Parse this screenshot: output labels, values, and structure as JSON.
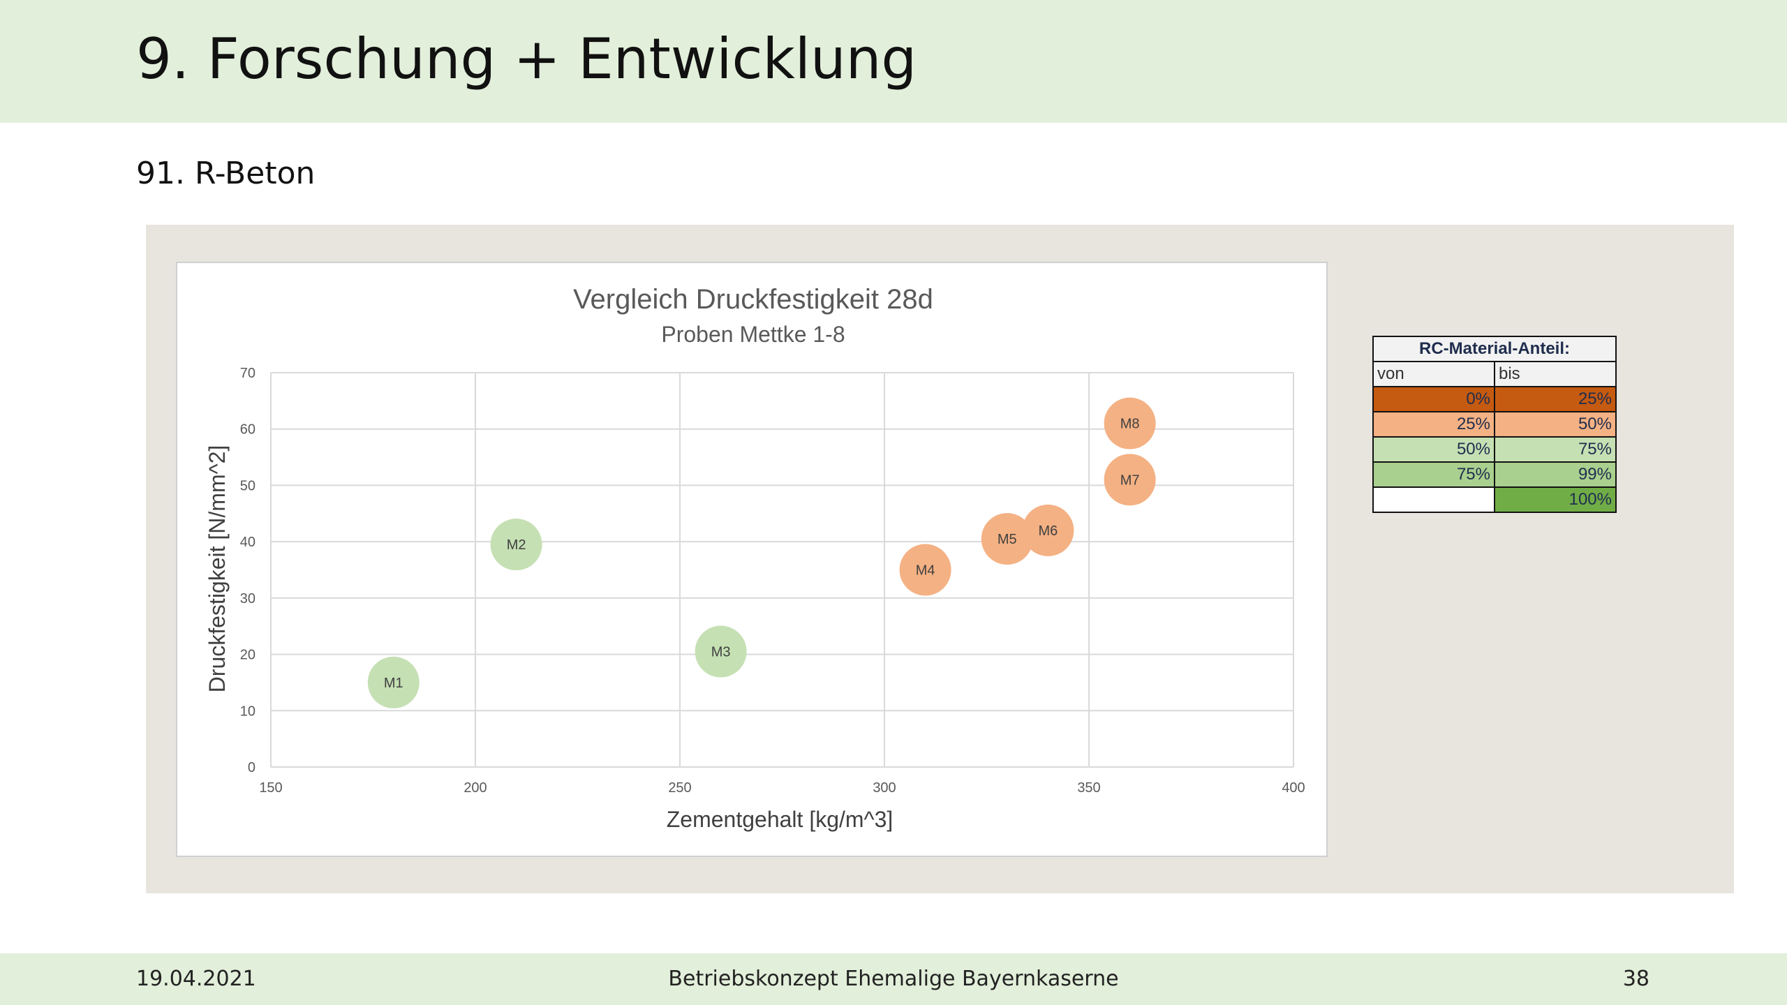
{
  "slide": {
    "title": "9. Forschung + Entwicklung",
    "section": "91. R-Beton"
  },
  "chart_data": {
    "type": "scatter",
    "title": "Vergleich Druckfestigkeit 28d",
    "subtitle": "Proben Mettke 1-8",
    "xlabel": "Zementgehalt [kg/m^3]",
    "ylabel": "Druckfestigkeit [N/mm^2]",
    "xlim": [
      150,
      400
    ],
    "ylim": [
      0,
      70
    ],
    "xticks": [
      150,
      200,
      250,
      300,
      350,
      400
    ],
    "yticks": [
      0,
      10,
      20,
      30,
      40,
      50,
      60,
      70
    ],
    "grid": true,
    "points": [
      {
        "label": "M1",
        "x": 180,
        "y": 15,
        "color": "#c5e0b3"
      },
      {
        "label": "M2",
        "x": 210,
        "y": 39.5,
        "color": "#c5e0b3"
      },
      {
        "label": "M3",
        "x": 260,
        "y": 20.5,
        "color": "#c5e0b3"
      },
      {
        "label": "M4",
        "x": 310,
        "y": 35,
        "color": "#f4b183"
      },
      {
        "label": "M5",
        "x": 330,
        "y": 40.5,
        "color": "#f4b183"
      },
      {
        "label": "M6",
        "x": 340,
        "y": 42,
        "color": "#f4b183"
      },
      {
        "label": "M7",
        "x": 360,
        "y": 51,
        "color": "#f4b183"
      },
      {
        "label": "M8",
        "x": 360,
        "y": 61,
        "color": "#f4b183"
      }
    ]
  },
  "legend_table": {
    "header": "RC-Material-Anteil:",
    "col_from": "von",
    "col_to": "bis",
    "rows": [
      {
        "from": "0%",
        "to": "25%",
        "color_from": "#c55a11",
        "color_to": "#c55a11"
      },
      {
        "from": "25%",
        "to": "50%",
        "color_from": "#f4b183",
        "color_to": "#f4b183"
      },
      {
        "from": "50%",
        "to": "75%",
        "color_from": "#c5e0b3",
        "color_to": "#c5e0b3"
      },
      {
        "from": "75%",
        "to": "99%",
        "color_from": "#a9d08e",
        "color_to": "#a9d08e"
      },
      {
        "from": "",
        "to": "100%",
        "color_from": "#ffffff",
        "color_to": "#70ad47"
      }
    ]
  },
  "footer": {
    "date": "19.04.2021",
    "center": "Betriebskonzept Ehemalige Bayernkaserne",
    "page": "38"
  }
}
